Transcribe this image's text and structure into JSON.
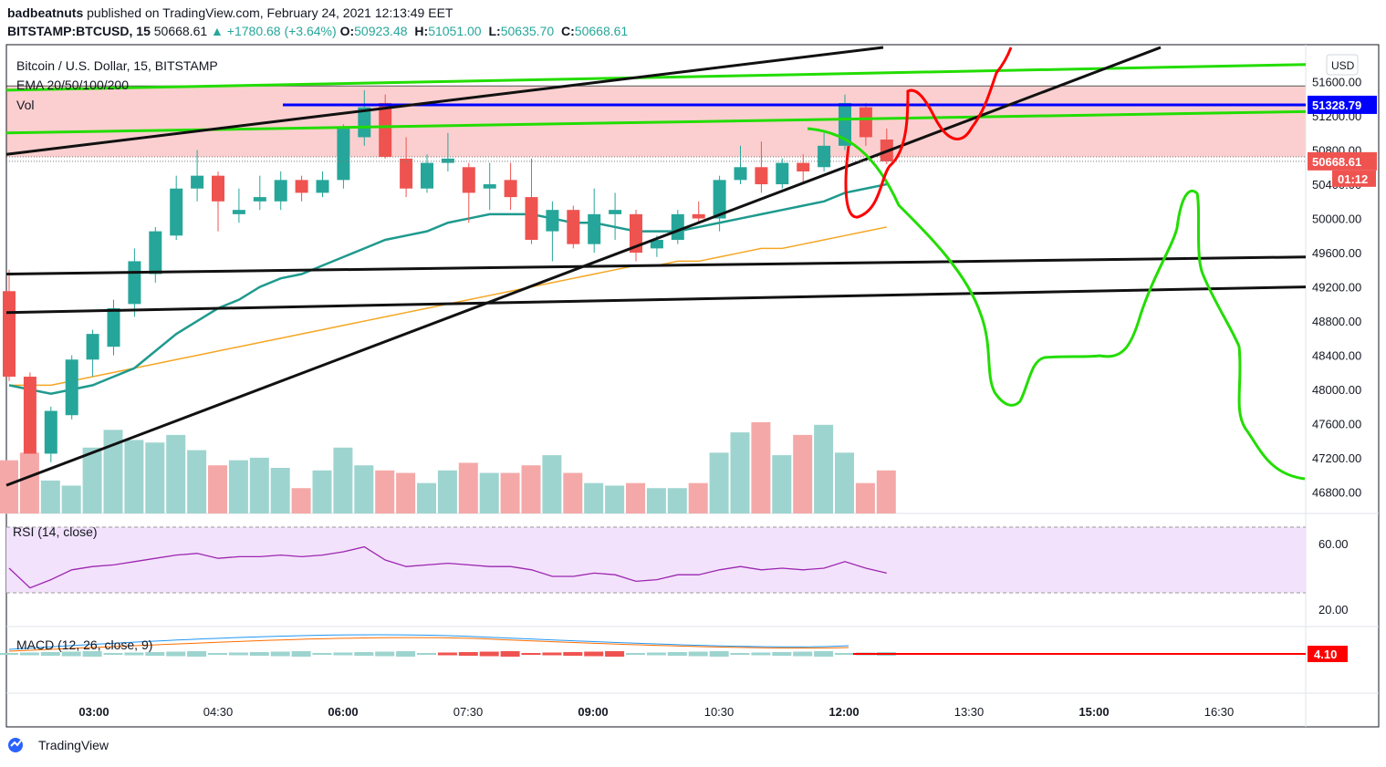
{
  "header": {
    "author": "badbeatnuts",
    "published": "published on TradingView.com, February 24, 2021 12:13:49 EET",
    "symbol": "BITSTAMP:BTCUSD, 15",
    "last": "50668.61",
    "change": "▲ +1780.68 (+3.64%)",
    "o_label": "O:",
    "o_value": "50923.48",
    "h_label": "H:",
    "h_value": "51051.00",
    "l_label": "L:",
    "l_value": "50635.70",
    "c_label": "C:",
    "c_value": "50668.61"
  },
  "legend": {
    "title": "Bitcoin / U.S. Dollar, 15, BITSTAMP",
    "ema": "EMA 20/50/100/200",
    "vol": "Vol",
    "rsi": "RSI (14, close)",
    "macd": "MACD (12, 26, close, 9)"
  },
  "footer": {
    "brand": "TradingView"
  },
  "colors": {
    "up": "#26a69a",
    "down": "#ef5350",
    "ema20": "#1e9a8e",
    "ema50": "#f5a623",
    "zone": "#fbcfcf",
    "blue": "#0000ff",
    "green": "#22dd00",
    "red": "#ff0000",
    "black": "#111111",
    "rsi_band": "#f3e2fc",
    "rsi_line": "#9c27b0"
  },
  "chart_data": {
    "type": "candlestick",
    "currency": "USD",
    "price_ticks": [
      "51600.00",
      "51200.00",
      "50800.00",
      "50400.00",
      "50000.00",
      "49600.00",
      "49200.00",
      "48800.00",
      "48400.00",
      "48000.00",
      "47600.00",
      "47200.00",
      "46800.00"
    ],
    "time_ticks": [
      "03:00",
      "04:30",
      "06:00",
      "07:30",
      "09:00",
      "10:30",
      "12:00",
      "13:30",
      "15:00",
      "16:30"
    ],
    "price_labels": {
      "level": "51328.79",
      "last": "50668.61",
      "countdown": "01:12"
    },
    "rsi_ticks": [
      "60.00",
      "20.00"
    ],
    "macd_label": "4.10",
    "candles": [
      [
        49150,
        48150,
        49400,
        48100
      ],
      [
        48150,
        47250,
        48200,
        47250
      ],
      [
        47250,
        47750,
        47800,
        47150
      ],
      [
        47700,
        48350,
        48400,
        47650
      ],
      [
        48350,
        48650,
        48700,
        48150
      ],
      [
        48500,
        48950,
        49050,
        48400
      ],
      [
        49000,
        49500,
        49650,
        48850
      ],
      [
        49350,
        49850,
        49900,
        49250
      ],
      [
        49800,
        50350,
        50500,
        49750
      ],
      [
        50350,
        50500,
        50800,
        50200
      ],
      [
        50500,
        50200,
        50550,
        49850
      ],
      [
        50050,
        50100,
        50350,
        49950
      ],
      [
        50200,
        50250,
        50500,
        50100
      ],
      [
        50200,
        50450,
        50550,
        50100
      ],
      [
        50450,
        50300,
        50500,
        50200
      ],
      [
        50300,
        50450,
        50550,
        50250
      ],
      [
        50450,
        51050,
        51100,
        50350
      ],
      [
        50950,
        51300,
        51500,
        50850
      ],
      [
        51350,
        50720,
        51450,
        50700
      ],
      [
        50700,
        50350,
        50950,
        50250
      ],
      [
        50350,
        50650,
        50750,
        50300
      ],
      [
        50650,
        50700,
        51000,
        50550
      ],
      [
        50600,
        50300,
        50650,
        49950
      ],
      [
        50350,
        50400,
        50650,
        50100
      ],
      [
        50450,
        50250,
        50650,
        50100
      ],
      [
        50250,
        49750,
        50700,
        49700
      ],
      [
        49850,
        50100,
        50200,
        49500
      ],
      [
        50100,
        49700,
        50150,
        49650
      ],
      [
        49700,
        50050,
        50350,
        49600
      ],
      [
        50050,
        50100,
        50300,
        49750
      ],
      [
        50050,
        49600,
        50100,
        49500
      ],
      [
        49650,
        49750,
        49800,
        49550
      ],
      [
        49750,
        50050,
        50100,
        49700
      ],
      [
        50050,
        50000,
        50200,
        49950
      ],
      [
        50000,
        50450,
        50500,
        49850
      ],
      [
        50450,
        50600,
        50850,
        50400
      ],
      [
        50600,
        50400,
        50900,
        50300
      ],
      [
        50400,
        50650,
        50700,
        50350
      ],
      [
        50650,
        50550,
        50750,
        50400
      ],
      [
        50600,
        50850,
        51000,
        50550
      ],
      [
        50850,
        51350,
        51450,
        50800
      ],
      [
        51300,
        50950,
        51350,
        50850
      ],
      [
        50923,
        50668,
        51051,
        50635
      ]
    ],
    "volume": [
      210,
      240,
      130,
      110,
      260,
      330,
      290,
      280,
      310,
      250,
      190,
      210,
      220,
      180,
      100,
      170,
      260,
      190,
      170,
      160,
      120,
      170,
      200,
      160,
      160,
      190,
      230,
      160,
      120,
      110,
      120,
      100,
      100,
      120,
      240,
      320,
      360,
      230,
      310,
      350,
      240,
      120,
      170
    ],
    "ema20": [
      48050,
      48000,
      47950,
      48000,
      48050,
      48150,
      48250,
      48450,
      48650,
      48800,
      48950,
      49050,
      49200,
      49300,
      49350,
      49450,
      49550,
      49650,
      49750,
      49800,
      49850,
      49950,
      50000,
      50050,
      50050,
      50050,
      50000,
      49950,
      49950,
      49900,
      49850,
      49850,
      49850,
      49900,
      49950,
      50000,
      50050,
      50100,
      50150,
      50200,
      50300,
      50350,
      50400
    ],
    "ema50": [
      48050,
      48050,
      48050,
      48100,
      48150,
      48200,
      48250,
      48300,
      48350,
      48400,
      48450,
      48500,
      48550,
      48600,
      48650,
      48700,
      48750,
      48800,
      48850,
      48900,
      48950,
      49000,
      49050,
      49100,
      49150,
      49200,
      49250,
      49300,
      49350,
      49400,
      49450,
      49450,
      49500,
      49500,
      49550,
      49600,
      49650,
      49650,
      49700,
      49750,
      49800,
      49850,
      49900
    ],
    "rsi": [
      45,
      33,
      38,
      44,
      46,
      47,
      49,
      51,
      53,
      54,
      51,
      52,
      52,
      53,
      52,
      53,
      55,
      58,
      50,
      46,
      47,
      48,
      47,
      46,
      46,
      44,
      40,
      40,
      42,
      41,
      37,
      38,
      41,
      41,
      44,
      46,
      44,
      45,
      44,
      45,
      49,
      45,
      42
    ],
    "drawings": {
      "resistance_zone": [
        51550,
        50720
      ],
      "horizontal_level": 51328.79,
      "green_channel": [
        [
          51500,
          51800
        ],
        [
          51000,
          51250
        ]
      ],
      "support_lines": [
        [
          49350,
          49550
        ],
        [
          48900,
          49200
        ]
      ]
    }
  }
}
